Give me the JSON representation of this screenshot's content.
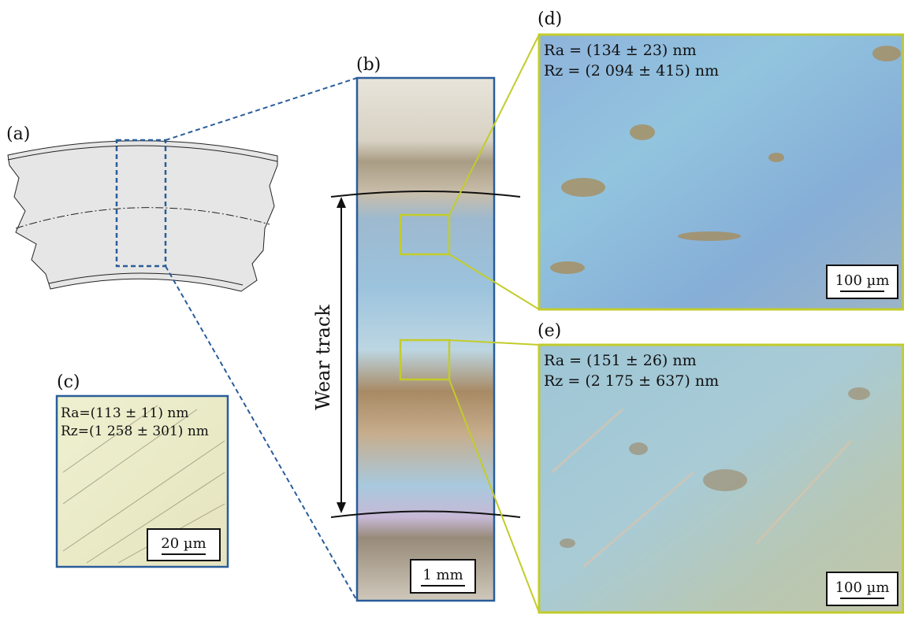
{
  "panels": {
    "a": {
      "label": "(a)"
    },
    "b": {
      "label": "(b)",
      "scale_label": "1 mm",
      "annotation": "Wear track"
    },
    "c": {
      "label": "(c)",
      "ra": "Ra=(113 ± 11) nm",
      "rz": "Rz=(1 258 ± 301) nm",
      "scale_label": "20 µm"
    },
    "d": {
      "label": "(d)",
      "ra": "Ra = (134 ± 23) nm",
      "rz": "Rz = (2 094 ± 415) nm",
      "scale_label": "100 µm"
    },
    "e": {
      "label": "(e)",
      "ra": "Ra = (151 ± 26) nm",
      "rz": "Rz = (2 175 ± 637) nm",
      "scale_label": "100 µm"
    }
  },
  "colors": {
    "frame_blue": "#2a5d9a",
    "highlight_yellow": "#c3cc2a",
    "part_fill": "#e6e6e6"
  }
}
